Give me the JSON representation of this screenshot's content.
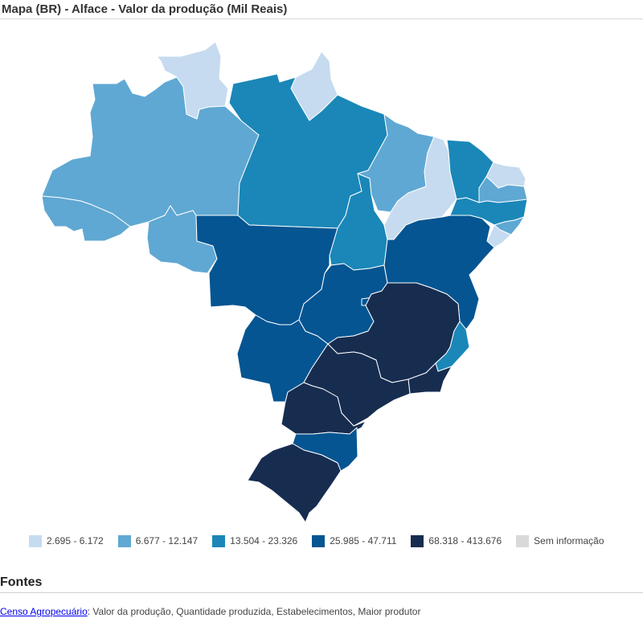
{
  "title": "Mapa (BR) - Alface - Valor da produção (Mil Reais)",
  "colors": {
    "c1": "#c6dbef",
    "c2": "#5fa8d3",
    "c3": "#1a87b8",
    "c4": "#045592",
    "c5": "#172d50",
    "none": "#d9d9d9"
  },
  "legend": [
    {
      "label": "2.695 - 6.172",
      "color": "#c6dbef"
    },
    {
      "label": "6.677 - 12.147",
      "color": "#5fa8d3"
    },
    {
      "label": "13.504 - 23.326",
      "color": "#1a87b8"
    },
    {
      "label": "25.985 - 47.711",
      "color": "#045592"
    },
    {
      "label": "68.318 - 413.676",
      "color": "#172d50"
    },
    {
      "label": "Sem informação",
      "color": "#d9d9d9"
    }
  ],
  "fontes": {
    "heading": "Fontes",
    "link": "Censo Agropecuário",
    "text": ": Valor da produção, Quantidade produzida, Estabelecimentos, Maior produtor"
  }
}
